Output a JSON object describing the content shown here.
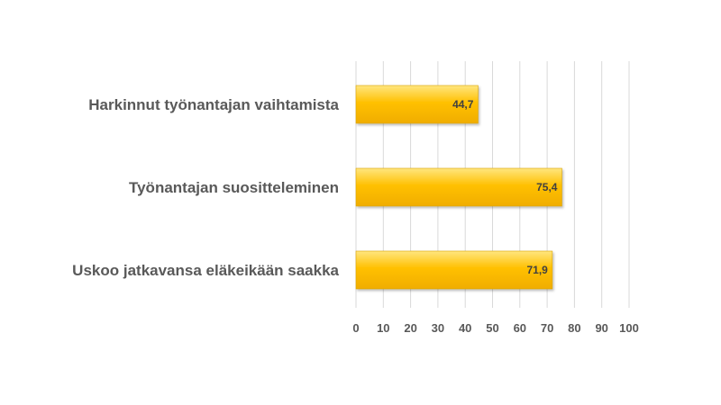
{
  "chart_data": {
    "type": "bar",
    "orientation": "horizontal",
    "title": "",
    "xlabel": "",
    "ylabel": "",
    "categories": [
      "Harkinnut työnantajan vaihtamista",
      "Työnantajan suositteleminen",
      "Uskoo jatkavansa eläkeikään saakka"
    ],
    "values": [
      44.7,
      75.4,
      71.9
    ],
    "data_labels": [
      "44,7",
      "75,4",
      "71,9"
    ],
    "xlim": [
      0,
      100
    ],
    "xticks": [
      0,
      10,
      20,
      30,
      40,
      50,
      60,
      70,
      80,
      90,
      100
    ],
    "grid": true,
    "legend": "none",
    "bar_color_top": "#ffe680",
    "bar_color": "#ffc000",
    "bar_color_bottom": "#f0ad00"
  }
}
